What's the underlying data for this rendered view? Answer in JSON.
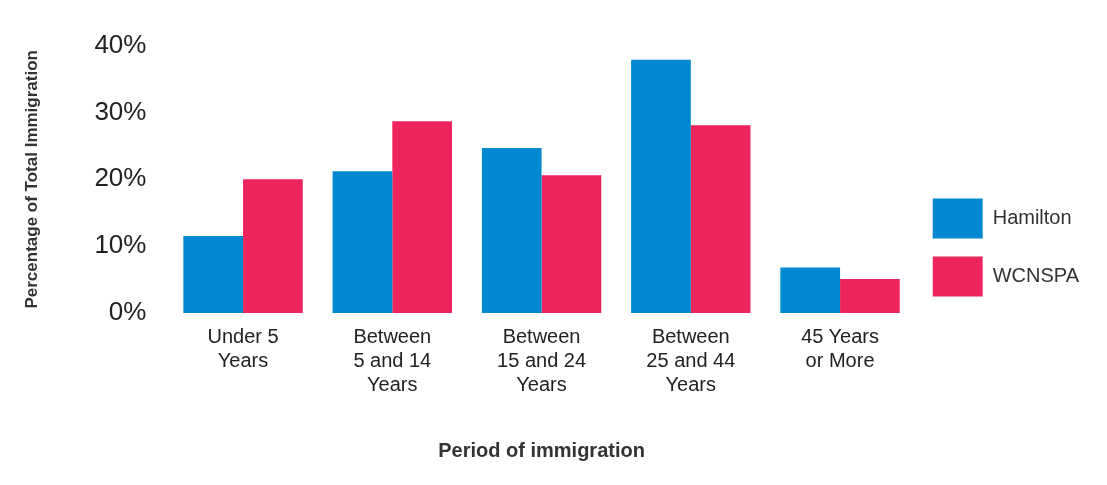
{
  "chart_data": {
    "type": "bar",
    "xlabel": "Period of immigration",
    "ylabel": "Percentage of Total Immigration",
    "categories": [
      "Under 5 Years",
      "Between 5 and 14 Years",
      "Between 15 and 24 Years",
      "Between 25 and 44 Years",
      "45 Years or More"
    ],
    "series": [
      {
        "name": "Hamilton",
        "color": "#0089d0",
        "values": [
          11.5,
          21.2,
          24.7,
          37.9,
          6.8
        ]
      },
      {
        "name": "WCNSPA",
        "color": "#ee255c",
        "values": [
          20.0,
          28.7,
          20.6,
          28.1,
          5.1
        ]
      }
    ],
    "ylim": [
      0,
      40
    ],
    "yticks": [
      {
        "value": 0,
        "label": "0%"
      },
      {
        "value": 10,
        "label": "10%"
      },
      {
        "value": 20,
        "label": "20%"
      },
      {
        "value": 30,
        "label": "30%"
      },
      {
        "value": 40,
        "label": "40%"
      }
    ],
    "grid": false,
    "legend": "right"
  }
}
